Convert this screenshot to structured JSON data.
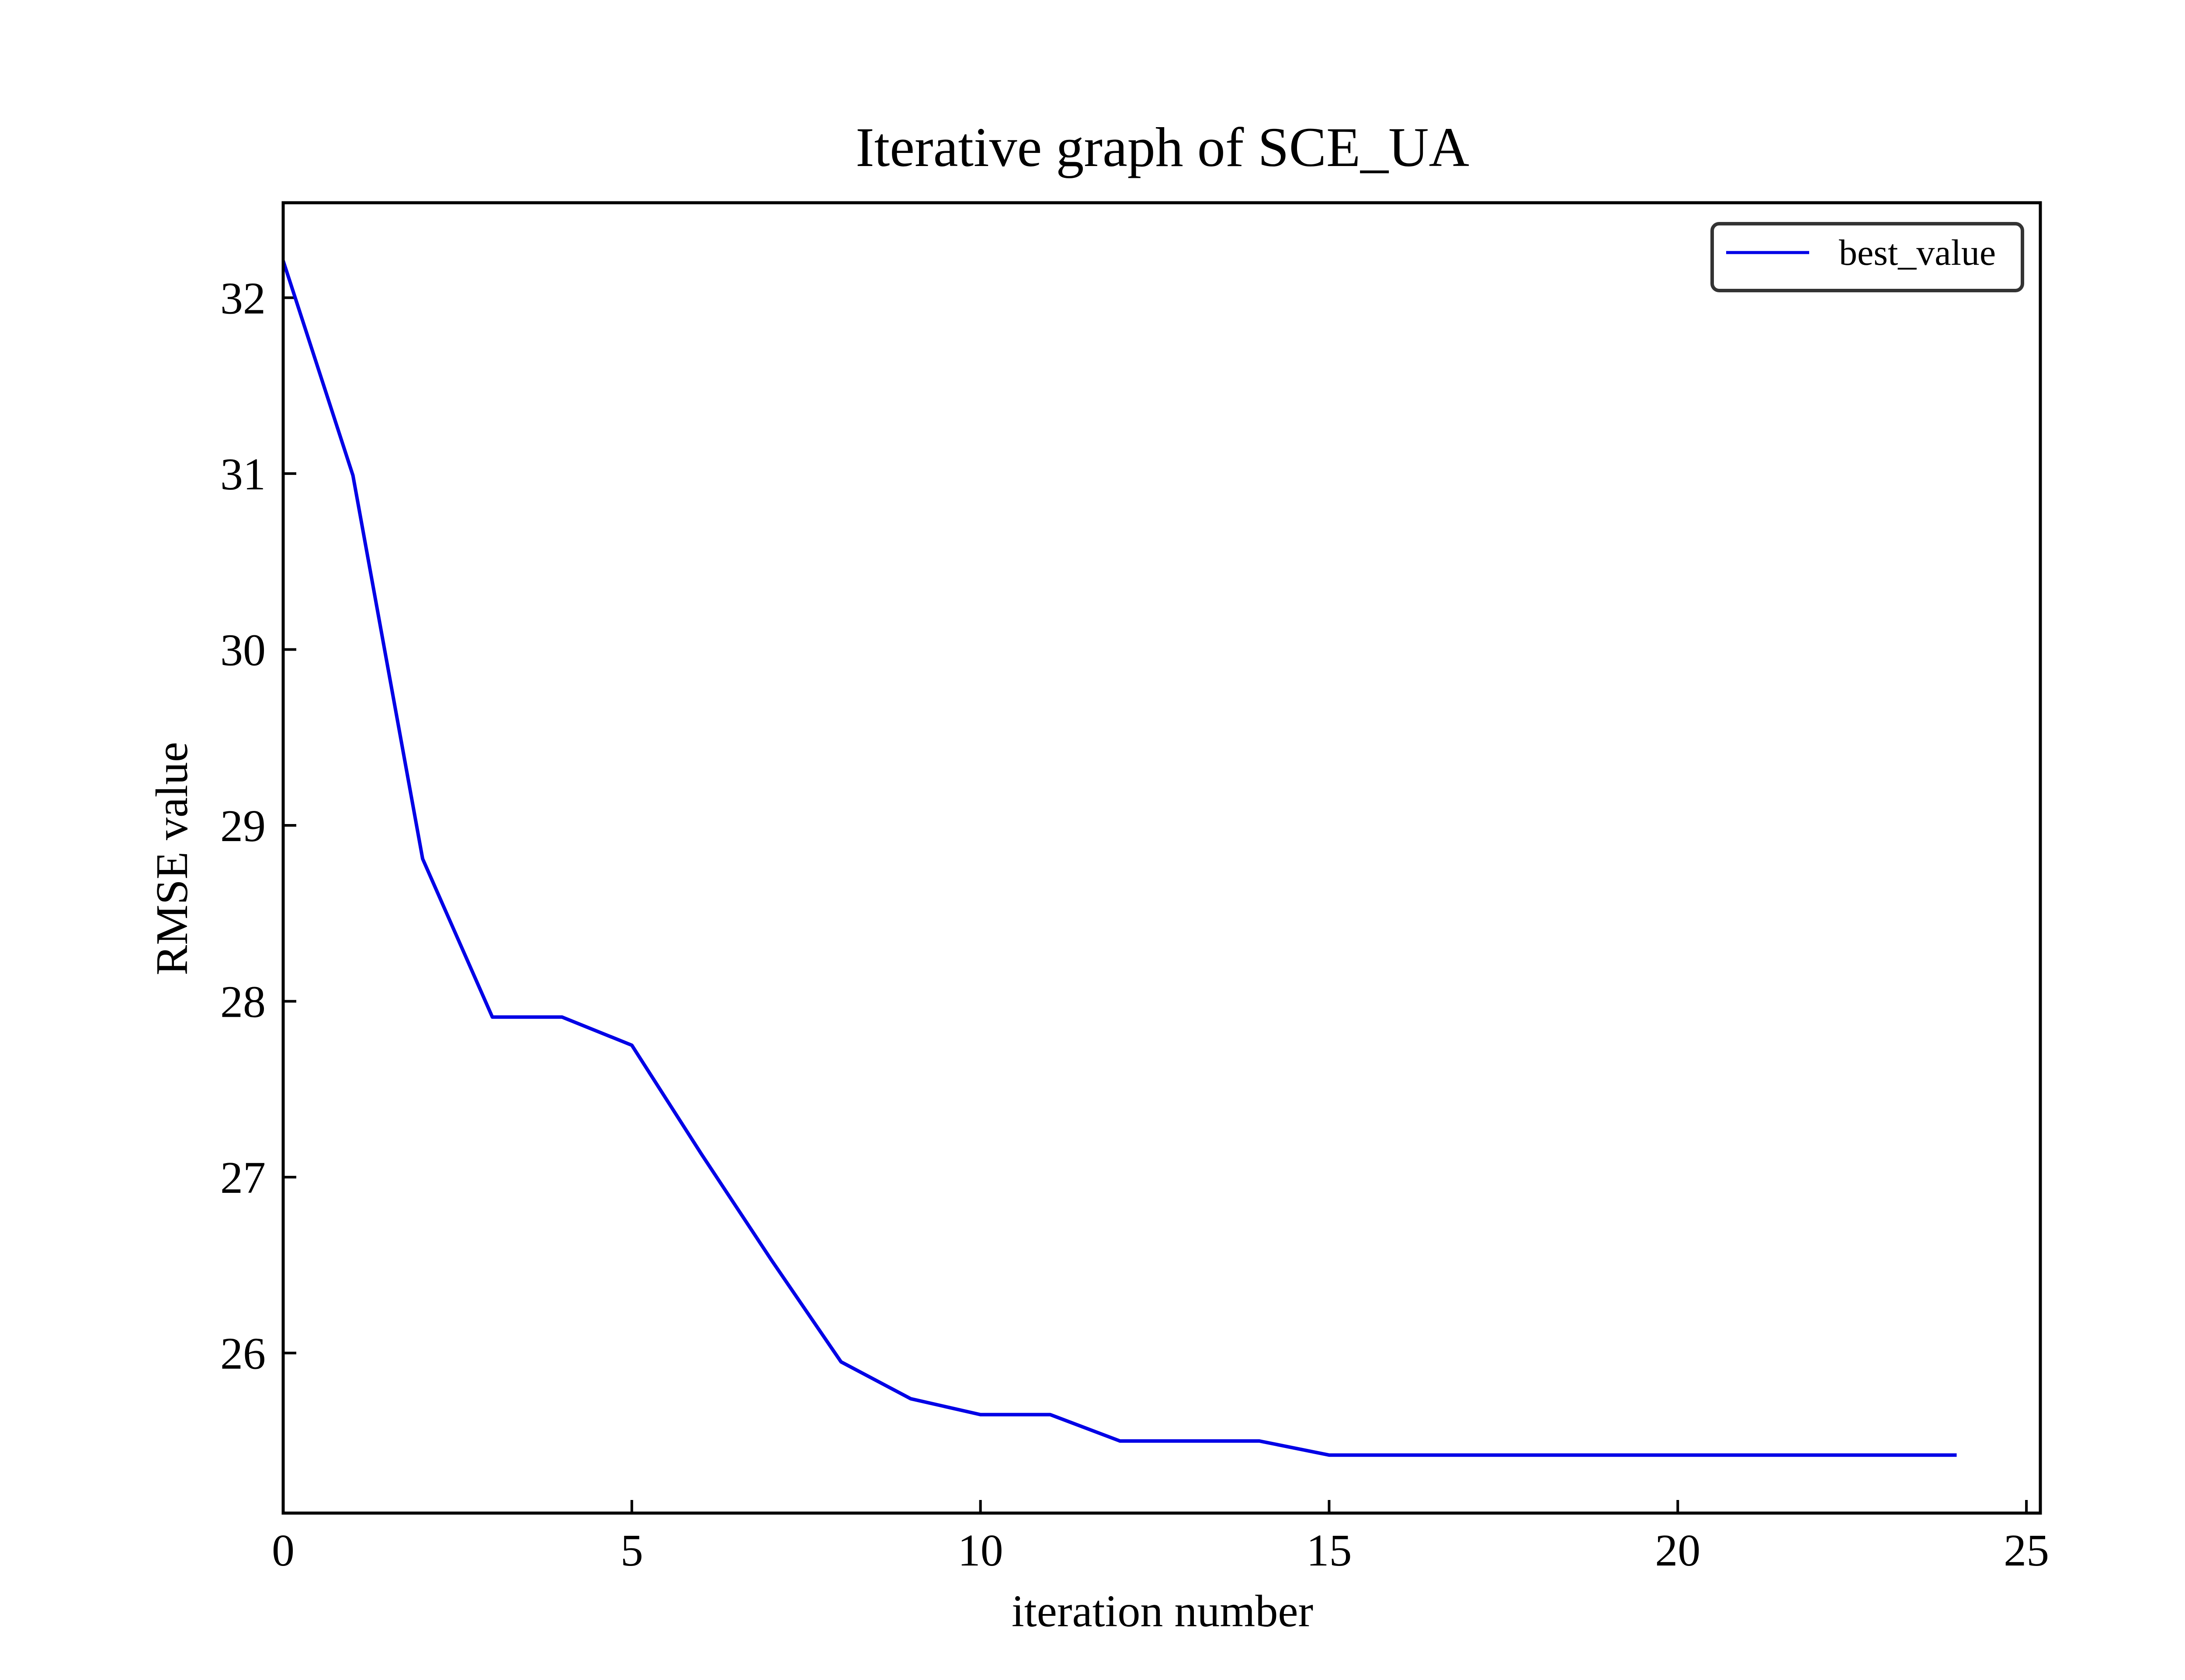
{
  "chart_data": {
    "type": "line",
    "title": "Iterative graph of SCE_UA",
    "xlabel": "iteration number",
    "ylabel": "RMSE value",
    "xlim": [
      0,
      25.2
    ],
    "ylim": [
      25.09,
      32.54
    ],
    "x_ticks": [
      0,
      5,
      10,
      15,
      20,
      25
    ],
    "y_ticks": [
      26,
      27,
      28,
      29,
      30,
      31,
      32
    ],
    "grid": false,
    "legend_position": "top-right",
    "series": [
      {
        "name": "best_value",
        "color": "#0000e6",
        "x": [
          0,
          1,
          2,
          3,
          4,
          5,
          6,
          7,
          8,
          9,
          10,
          11,
          12,
          13,
          14,
          15,
          16,
          17,
          18,
          19,
          20,
          21,
          22,
          23,
          24
        ],
        "y": [
          32.21,
          30.99,
          28.81,
          27.91,
          27.91,
          27.75,
          27.13,
          26.53,
          25.95,
          25.74,
          25.65,
          25.65,
          25.5,
          25.5,
          25.5,
          25.42,
          25.42,
          25.42,
          25.42,
          25.42,
          25.42,
          25.42,
          25.42,
          25.42,
          25.42
        ]
      }
    ]
  }
}
